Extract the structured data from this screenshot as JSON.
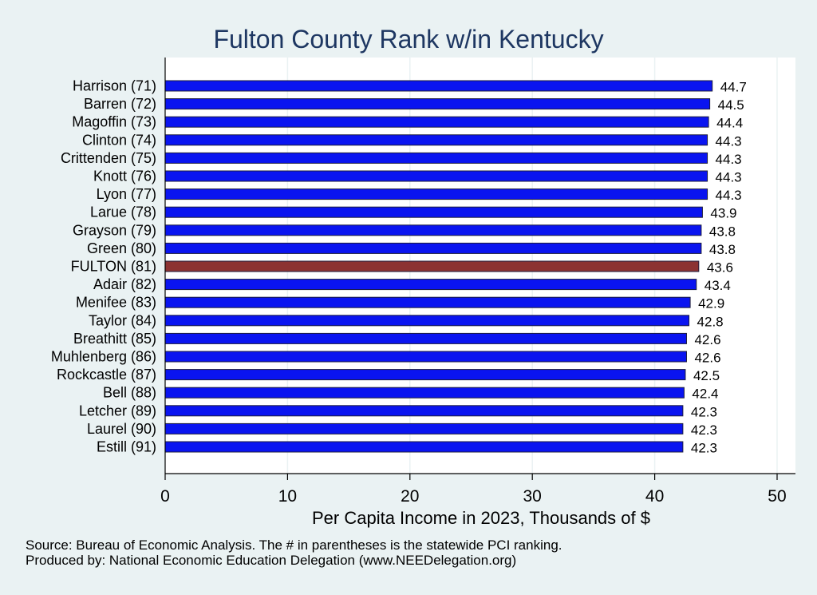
{
  "chart_data": {
    "type": "bar",
    "orientation": "horizontal",
    "title": "Fulton County Rank w/in Kentucky",
    "xlabel": "Per Capita Income in 2023, Thousands of $",
    "ylabel": "",
    "xlim": [
      0,
      51.5
    ],
    "xticks": [
      "0",
      "10",
      "20",
      "30",
      "40",
      "50"
    ],
    "xtick_values": [
      0,
      10,
      20,
      30,
      40,
      50
    ],
    "grid": true,
    "categories": [
      "Harrison (71)",
      "Barren (72)",
      "Magoffin (73)",
      "Clinton (74)",
      "Crittenden (75)",
      "Knott (76)",
      "Lyon (77)",
      "Larue (78)",
      "Grayson (79)",
      "Green (80)",
      "FULTON (81)",
      "Adair (82)",
      "Menifee (83)",
      "Taylor (84)",
      "Breathitt (85)",
      "Muhlenberg (86)",
      "Rockcastle (87)",
      "Bell (88)",
      "Letcher (89)",
      "Laurel (90)",
      "Estill (91)"
    ],
    "values": [
      44.7,
      44.5,
      44.4,
      44.3,
      44.3,
      44.3,
      44.3,
      43.9,
      43.8,
      43.8,
      43.6,
      43.4,
      42.9,
      42.8,
      42.6,
      42.6,
      42.5,
      42.4,
      42.3,
      42.3,
      42.3
    ],
    "value_labels": [
      "44.7",
      "44.5",
      "44.4",
      "44.3",
      "44.3",
      "44.3",
      "44.3",
      "43.9",
      "43.8",
      "43.8",
      "43.6",
      "43.4",
      "42.9",
      "42.8",
      "42.6",
      "42.6",
      "42.5",
      "42.4",
      "42.3",
      "42.3",
      "42.3"
    ],
    "highlight_index": 10,
    "colors": {
      "bar": "#0a14f0",
      "highlight": "#8c3232",
      "bar_edge": "#1c1c3c",
      "title": "#1e3762",
      "plot_background": "#ffffff",
      "page_background": "#eaf2f3",
      "grid": "#eaf2f3"
    }
  },
  "notes": {
    "source": "Source: Bureau of Economic Analysis. The # in parentheses is the statewide PCI ranking.",
    "producer": "Produced by: National Economic Education Delegation (www.NEEDelegation.org)"
  }
}
